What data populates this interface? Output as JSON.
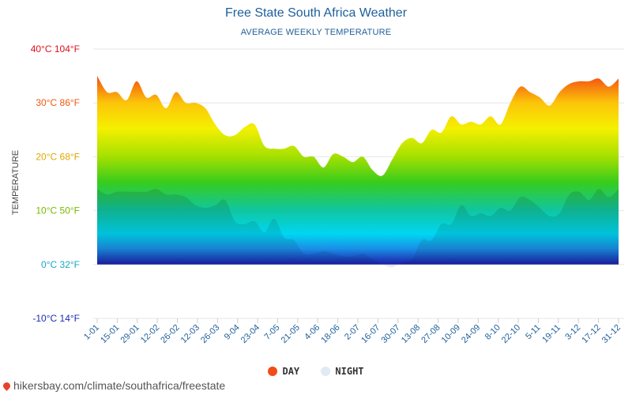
{
  "header": {
    "title": "Free State South Africa Weather",
    "subtitle": "AVERAGE WEEKLY TEMPERATURE"
  },
  "legend": {
    "day_label": "DAY",
    "night_label": "NIGHT",
    "day_color": "#f04e17",
    "night_color": "#e0eaf5"
  },
  "footer": {
    "source": "hikersbay.com/climate/southafrica/freestate"
  },
  "chart_data": {
    "type": "area",
    "title": "Free State South Africa Weather",
    "subtitle": "AVERAGE WEEKLY TEMPERATURE",
    "ylabel": "TEMPERATURE",
    "xlabel": "",
    "ylim": [
      -10,
      40
    ],
    "y_ticks": [
      {
        "value": 40,
        "label": "40°C 104°F",
        "color": "#e0101e"
      },
      {
        "value": 30,
        "label": "30°C 86°F",
        "color": "#ee5a10"
      },
      {
        "value": 20,
        "label": "20°C 68°F",
        "color": "#e0a800"
      },
      {
        "value": 10,
        "label": "10°C 50°F",
        "color": "#7ab800"
      },
      {
        "value": 0,
        "label": "0°C 32°F",
        "color": "#1aa6c8"
      },
      {
        "value": -10,
        "label": "-10°C 14°F",
        "color": "#1a2eb4"
      }
    ],
    "x_tick_labels": [
      "1-01",
      "15-01",
      "29-01",
      "12-02",
      "26-02",
      "12-03",
      "26-03",
      "9-04",
      "23-04",
      "7-05",
      "21-05",
      "4-06",
      "18-06",
      "2-07",
      "16-07",
      "30-07",
      "13-08",
      "27-08",
      "10-09",
      "24-09",
      "8-10",
      "22-10",
      "5-11",
      "19-11",
      "3-12",
      "17-12",
      "31-12"
    ],
    "grid": true,
    "series": [
      {
        "name": "DAY",
        "values": [
          35,
          32,
          32,
          30.5,
          34,
          31,
          31.5,
          29,
          32,
          30,
          30,
          29,
          26,
          24,
          24,
          25.5,
          26,
          22,
          21.5,
          21.5,
          22,
          20,
          20,
          18,
          20.5,
          20,
          19,
          20,
          17.5,
          16.5,
          19.5,
          22.5,
          23.5,
          22.5,
          25,
          24.5,
          27.5,
          26,
          26.5,
          26,
          27.5,
          26,
          30,
          33,
          32,
          31,
          29.5,
          32,
          33.5,
          34,
          34,
          34.5,
          33,
          34.5
        ]
      },
      {
        "name": "NIGHT",
        "values": [
          14,
          13,
          13.5,
          13.5,
          13.5,
          13.5,
          14,
          13,
          13,
          12.5,
          11,
          10.5,
          11,
          12,
          8,
          7.5,
          8,
          6,
          8.5,
          5,
          4.5,
          2,
          2,
          2.5,
          2,
          1.5,
          1.5,
          2,
          1,
          0,
          -0.5,
          0.5,
          1,
          4.5,
          4.5,
          7.5,
          7.5,
          11,
          9,
          9.5,
          9,
          10.5,
          10,
          12.5,
          12,
          10.5,
          9,
          9.5,
          13,
          13.5,
          12,
          14,
          12.5,
          14
        ]
      }
    ]
  }
}
